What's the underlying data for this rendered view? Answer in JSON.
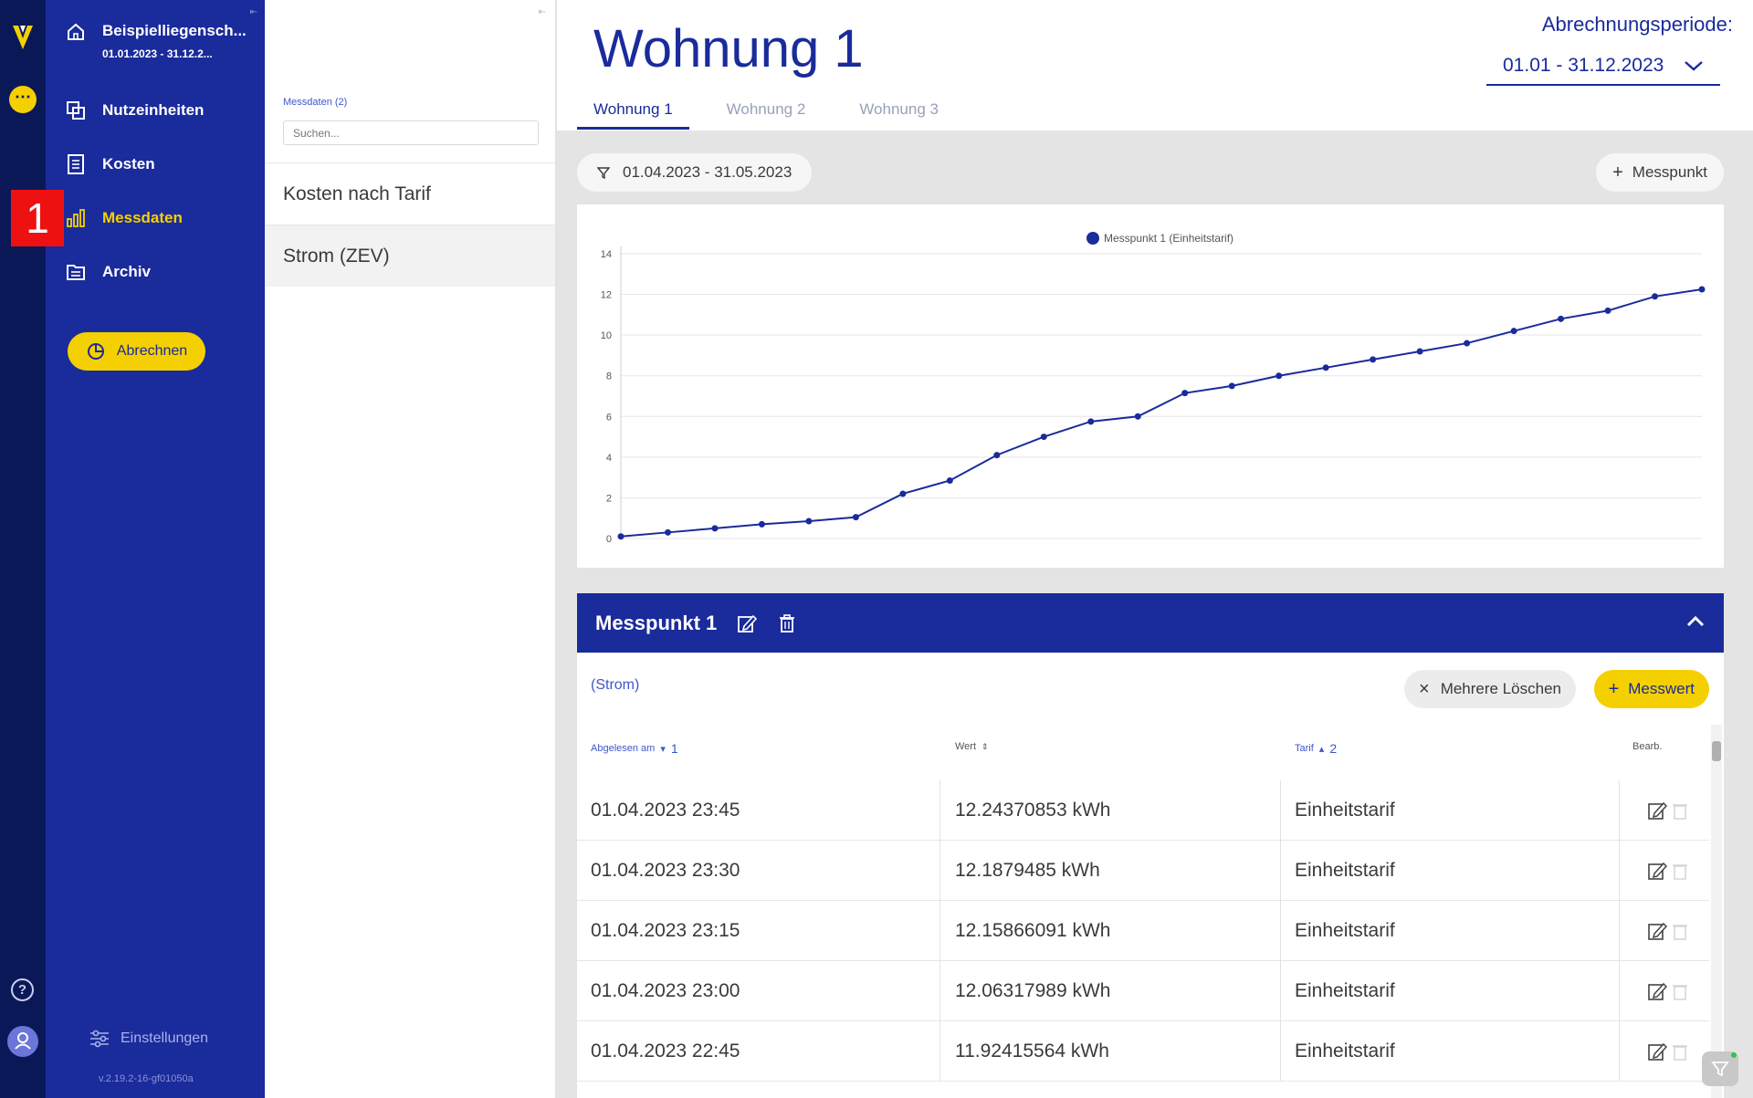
{
  "colors": {
    "rail": "#0b1858",
    "nav": "#1a2b9b",
    "accent": "#f5d000",
    "primary": "#1a2b9b",
    "marker": "#ee1111"
  },
  "property": {
    "name": "Beispielliegensch...",
    "period": "01.01.2023 - 31.12.2..."
  },
  "nav": {
    "items": [
      {
        "label": "Nutzeinheiten",
        "icon": "units-icon"
      },
      {
        "label": "Kosten",
        "icon": "costs-icon"
      },
      {
        "label": "Messdaten",
        "icon": "bar-chart-icon"
      },
      {
        "label": "Archiv",
        "icon": "archive-icon"
      }
    ],
    "bill_button": "Abrechnen",
    "settings": "Einstellungen",
    "version": "v.2.19.2-16-gf01050a"
  },
  "marker_badge": "1",
  "list": {
    "label": "Messdaten (2)",
    "search_placeholder": "Suchen...",
    "items": [
      "Kosten nach Tarif",
      "Strom (ZEV)"
    ]
  },
  "main": {
    "title": "Wohnung 1",
    "period_label": "Abrechnungsperiode:",
    "period_value": "01.01 - 31.12.2023",
    "tabs": [
      "Wohnung 1",
      "Wohnung 2",
      "Wohnung 3"
    ],
    "filter": "01.04.2023 - 31.05.2023",
    "add_measure_point": "Messpunkt"
  },
  "chart_data": {
    "type": "line",
    "title": "",
    "legend": "top-center",
    "series": [
      {
        "name": "Messpunkt 1 (Einheitstarif)",
        "color": "#1a2b9b",
        "values": [
          0.1,
          0.3,
          0.5,
          0.7,
          0.85,
          1.05,
          2.2,
          2.85,
          4.1,
          5.0,
          5.75,
          6.0,
          7.15,
          7.5,
          8.0,
          8.4,
          8.8,
          9.2,
          9.6,
          10.2,
          10.8,
          11.2,
          11.9,
          12.25
        ]
      }
    ],
    "ylim": [
      0,
      14
    ],
    "yticks": [
      "0",
      "2",
      "4",
      "6",
      "8",
      "10",
      "12",
      "14"
    ],
    "grid": true
  },
  "measure_point": {
    "title": "Messpunkt 1",
    "type": "(Strom)",
    "delete_multiple": "Mehrere Löschen",
    "add_value": "Messwert",
    "columns": {
      "read_at": "Abgelesen am",
      "read_at_sort": "1",
      "value": "Wert",
      "tariff": "Tarif",
      "tariff_sort": "2",
      "edit": "Bearb."
    },
    "rows": [
      {
        "date": "01.04.2023 23:45",
        "value": "12.24370853 kWh",
        "tariff": "Einheitstarif"
      },
      {
        "date": "01.04.2023 23:30",
        "value": "12.1879485 kWh",
        "tariff": "Einheitstarif"
      },
      {
        "date": "01.04.2023 23:15",
        "value": "12.15866091 kWh",
        "tariff": "Einheitstarif"
      },
      {
        "date": "01.04.2023 23:00",
        "value": "12.06317989 kWh",
        "tariff": "Einheitstarif"
      },
      {
        "date": "01.04.2023 22:45",
        "value": "11.92415564 kWh",
        "tariff": "Einheitstarif"
      }
    ]
  }
}
